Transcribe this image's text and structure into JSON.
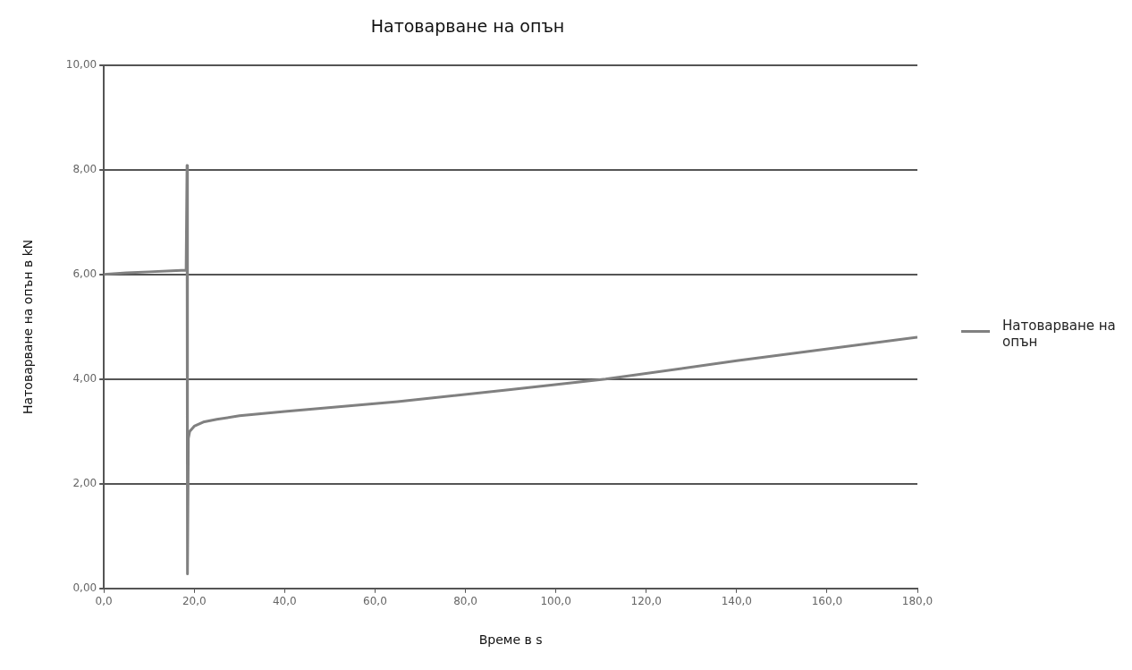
{
  "chart_data": {
    "type": "line",
    "title": "Натоварване на опън",
    "xlabel": "Време в s",
    "ylabel": "Натоварване на опън в kN",
    "x": [
      0,
      5,
      10,
      15,
      18.2,
      18.4,
      18.5,
      18.7,
      19,
      20,
      22,
      25,
      30,
      40,
      65,
      90,
      111,
      140,
      180
    ],
    "series": [
      {
        "name": "Натоварване на опън",
        "color": "#808080",
        "values": [
          6.0,
          6.03,
          6.05,
          6.07,
          6.08,
          8.08,
          0.28,
          2.87,
          3.0,
          3.1,
          3.18,
          3.23,
          3.3,
          3.38,
          3.57,
          3.8,
          4.0,
          4.35,
          4.8
        ]
      }
    ],
    "xlim": [
      0,
      180
    ],
    "xticks": [
      {
        "value": 0,
        "label": "0,0"
      },
      {
        "value": 20,
        "label": "20,0"
      },
      {
        "value": 40,
        "label": "40,0"
      },
      {
        "value": 60,
        "label": "60,0"
      },
      {
        "value": 80,
        "label": "80,0"
      },
      {
        "value": 100,
        "label": "100,0"
      },
      {
        "value": 120,
        "label": "120,0"
      },
      {
        "value": 140,
        "label": "140,0"
      },
      {
        "value": 160,
        "label": "160,0"
      },
      {
        "value": 180,
        "label": "180,0"
      }
    ],
    "ylim": [
      0,
      10
    ],
    "yticks": [
      {
        "value": 0,
        "label": "0,00"
      },
      {
        "value": 2,
        "label": "2,00"
      },
      {
        "value": 4,
        "label": "4,00"
      },
      {
        "value": 6,
        "label": "6,00"
      },
      {
        "value": 8,
        "label": "8,00"
      },
      {
        "value": 10,
        "label": "10,00"
      }
    ],
    "grid": "y",
    "legend": "right",
    "marker": "none",
    "line_style": "solid"
  }
}
